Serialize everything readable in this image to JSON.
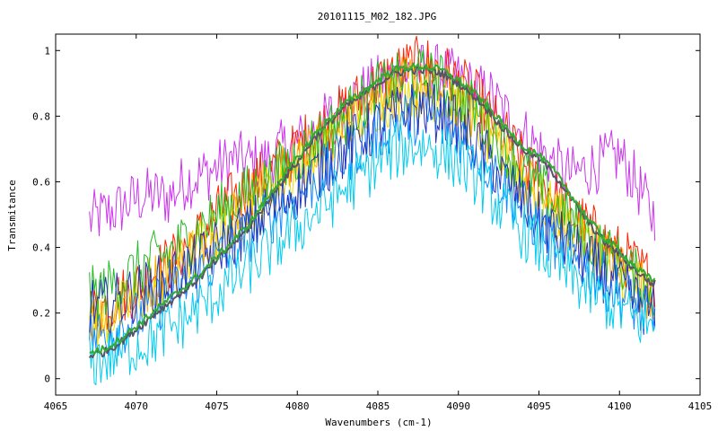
{
  "chart_data": {
    "type": "line",
    "title": "20101115_M02_182.JPG",
    "xlabel": "Wavenumbers (cm-1)",
    "ylabel": "Transmitance",
    "xlim": [
      4065,
      4105
    ],
    "ylim": [
      -0.05,
      1.05
    ],
    "xticks": [
      4065,
      4070,
      4075,
      4080,
      4085,
      4090,
      4095,
      4100,
      4105
    ],
    "xtick_labels": [
      "4065",
      "4070",
      "4075",
      "4080",
      "4085",
      "4090",
      "4095",
      "4100",
      "4105"
    ],
    "yticks": [
      0,
      0.2,
      0.4,
      0.6,
      0.8,
      1
    ],
    "ytick_labels": [
      "0",
      "0.2",
      "0.4",
      "0.6",
      "0.8",
      "1"
    ],
    "grid": false,
    "legend": "none",
    "x_range_data": [
      4067.1,
      4102.2
    ],
    "series": [
      {
        "color": "#cc33ee",
        "x": [
          4067,
          4068,
          4069,
          4070,
          4071,
          4072,
          4073,
          4074,
          4075,
          4076,
          4077,
          4078,
          4079,
          4080,
          4081,
          4082,
          4083,
          4084,
          4085,
          4086,
          4087,
          4088,
          4089,
          4090,
          4091,
          4092,
          4093,
          4094,
          4095,
          4096,
          4097,
          4098,
          4099,
          4100,
          4101,
          4102
        ],
        "y": [
          0.48,
          0.5,
          0.52,
          0.55,
          0.56,
          0.55,
          0.6,
          0.62,
          0.64,
          0.67,
          0.66,
          0.66,
          0.7,
          0.72,
          0.75,
          0.8,
          0.84,
          0.87,
          0.9,
          0.92,
          0.93,
          0.94,
          0.93,
          0.91,
          0.88,
          0.86,
          0.8,
          0.75,
          0.7,
          0.65,
          0.62,
          0.64,
          0.66,
          0.68,
          0.6,
          0.5
        ]
      },
      {
        "color": "#ff2200",
        "x": [
          4067,
          4068,
          4069,
          4070,
          4071,
          4072,
          4073,
          4074,
          4075,
          4076,
          4077,
          4078,
          4079,
          4080,
          4081,
          4082,
          4083,
          4084,
          4085,
          4086,
          4087,
          4088,
          4089,
          4090,
          4091,
          4092,
          4093,
          4094,
          4095,
          4096,
          4097,
          4098,
          4099,
          4100,
          4101,
          4102
        ],
        "y": [
          0.2,
          0.22,
          0.25,
          0.28,
          0.32,
          0.35,
          0.4,
          0.44,
          0.5,
          0.55,
          0.58,
          0.62,
          0.66,
          0.7,
          0.75,
          0.78,
          0.82,
          0.86,
          0.9,
          0.93,
          0.95,
          0.96,
          0.94,
          0.9,
          0.86,
          0.8,
          0.73,
          0.66,
          0.6,
          0.56,
          0.5,
          0.46,
          0.42,
          0.38,
          0.34,
          0.3
        ]
      },
      {
        "color": "#ffaa00",
        "x": [
          4067,
          4068,
          4069,
          4070,
          4071,
          4072,
          4073,
          4074,
          4075,
          4076,
          4077,
          4078,
          4079,
          4080,
          4081,
          4082,
          4083,
          4084,
          4085,
          4086,
          4087,
          4088,
          4089,
          4090,
          4091,
          4092,
          4093,
          4094,
          4095,
          4096,
          4097,
          4098,
          4099,
          4100,
          4101,
          4102
        ],
        "y": [
          0.18,
          0.2,
          0.22,
          0.26,
          0.3,
          0.33,
          0.37,
          0.42,
          0.46,
          0.5,
          0.55,
          0.58,
          0.62,
          0.66,
          0.7,
          0.74,
          0.78,
          0.82,
          0.86,
          0.88,
          0.9,
          0.9,
          0.88,
          0.85,
          0.8,
          0.74,
          0.68,
          0.62,
          0.56,
          0.5,
          0.46,
          0.42,
          0.38,
          0.34,
          0.3,
          0.26
        ]
      },
      {
        "color": "#eedd00",
        "x": [
          4067,
          4068,
          4069,
          4070,
          4071,
          4072,
          4073,
          4074,
          4075,
          4076,
          4077,
          4078,
          4079,
          4080,
          4081,
          4082,
          4083,
          4084,
          4085,
          4086,
          4087,
          4088,
          4089,
          4090,
          4091,
          4092,
          4093,
          4094,
          4095,
          4096,
          4097,
          4098,
          4099,
          4100,
          4101,
          4102
        ],
        "y": [
          0.16,
          0.18,
          0.21,
          0.24,
          0.28,
          0.31,
          0.35,
          0.4,
          0.44,
          0.48,
          0.52,
          0.56,
          0.6,
          0.64,
          0.68,
          0.72,
          0.76,
          0.8,
          0.84,
          0.86,
          0.88,
          0.88,
          0.86,
          0.83,
          0.78,
          0.72,
          0.66,
          0.6,
          0.55,
          0.5,
          0.45,
          0.41,
          0.37,
          0.33,
          0.29,
          0.25
        ]
      },
      {
        "color": "#22bb22",
        "x": [
          4067,
          4068,
          4069,
          4070,
          4071,
          4072,
          4073,
          4074,
          4075,
          4076,
          4077,
          4078,
          4079,
          4080,
          4081,
          4082,
          4083,
          4084,
          4085,
          4086,
          4087,
          4088,
          4089,
          4090,
          4091,
          4092,
          4093,
          4094,
          4095,
          4096,
          4097,
          4098,
          4099,
          4100,
          4101,
          4102
        ],
        "y": [
          0.25,
          0.27,
          0.3,
          0.33,
          0.36,
          0.38,
          0.42,
          0.46,
          0.5,
          0.54,
          0.57,
          0.6,
          0.64,
          0.68,
          0.72,
          0.76,
          0.8,
          0.84,
          0.88,
          0.9,
          0.92,
          0.92,
          0.9,
          0.86,
          0.82,
          0.76,
          0.7,
          0.64,
          0.58,
          0.53,
          0.48,
          0.43,
          0.39,
          0.35,
          0.31,
          0.27
        ]
      },
      {
        "color": "#1188ff",
        "x": [
          4067,
          4068,
          4069,
          4070,
          4071,
          4072,
          4073,
          4074,
          4075,
          4076,
          4077,
          4078,
          4079,
          4080,
          4081,
          4082,
          4083,
          4084,
          4085,
          4086,
          4087,
          4088,
          4089,
          4090,
          4091,
          4092,
          4093,
          4094,
          4095,
          4096,
          4097,
          4098,
          4099,
          4100,
          4101,
          4102
        ],
        "y": [
          0.12,
          0.14,
          0.16,
          0.18,
          0.22,
          0.25,
          0.28,
          0.32,
          0.36,
          0.4,
          0.44,
          0.48,
          0.52,
          0.56,
          0.6,
          0.64,
          0.68,
          0.72,
          0.75,
          0.78,
          0.8,
          0.8,
          0.78,
          0.75,
          0.7,
          0.64,
          0.58,
          0.52,
          0.46,
          0.42,
          0.38,
          0.34,
          0.3,
          0.26,
          0.22,
          0.18
        ]
      },
      {
        "color": "#2233bb",
        "x": [
          4067,
          4068,
          4069,
          4070,
          4071,
          4072,
          4073,
          4074,
          4075,
          4076,
          4077,
          4078,
          4079,
          4080,
          4081,
          4082,
          4083,
          4084,
          4085,
          4086,
          4087,
          4088,
          4089,
          4090,
          4091,
          4092,
          4093,
          4094,
          4095,
          4096,
          4097,
          4098,
          4099,
          4100,
          4101,
          4102
        ],
        "y": [
          0.22,
          0.22,
          0.24,
          0.26,
          0.28,
          0.3,
          0.33,
          0.36,
          0.4,
          0.43,
          0.46,
          0.5,
          0.54,
          0.58,
          0.62,
          0.66,
          0.7,
          0.74,
          0.77,
          0.8,
          0.82,
          0.82,
          0.8,
          0.77,
          0.72,
          0.66,
          0.6,
          0.54,
          0.48,
          0.44,
          0.4,
          0.36,
          0.32,
          0.28,
          0.24,
          0.2
        ]
      },
      {
        "color": "#00ccee",
        "x": [
          4067,
          4068,
          4069,
          4070,
          4071,
          4072,
          4073,
          4074,
          4075,
          4076,
          4077,
          4078,
          4079,
          4080,
          4081,
          4082,
          4083,
          4084,
          4085,
          4086,
          4087,
          4088,
          4089,
          4090,
          4091,
          4092,
          4093,
          4094,
          4095,
          4096,
          4097,
          4098,
          4099,
          4100,
          4101,
          4102
        ],
        "y": [
          0.05,
          0.06,
          0.08,
          0.1,
          0.12,
          0.15,
          0.18,
          0.22,
          0.26,
          0.3,
          0.34,
          0.38,
          0.42,
          0.46,
          0.5,
          0.54,
          0.58,
          0.62,
          0.66,
          0.69,
          0.71,
          0.71,
          0.69,
          0.66,
          0.62,
          0.56,
          0.5,
          0.45,
          0.4,
          0.35,
          0.31,
          0.27,
          0.24,
          0.21,
          0.18,
          0.16
        ]
      },
      {
        "color": "#555566",
        "x": [
          4067,
          4068,
          4069,
          4070,
          4071,
          4072,
          4073,
          4074,
          4075,
          4076,
          4077,
          4078,
          4079,
          4080,
          4081,
          4082,
          4083,
          4084,
          4085,
          4086,
          4087,
          4088,
          4089,
          4090,
          4091,
          4092,
          4093,
          4094,
          4095,
          4096,
          4097,
          4098,
          4099,
          4100,
          4101,
          4102
        ],
        "y": [
          0.07,
          0.08,
          0.11,
          0.15,
          0.19,
          0.23,
          0.27,
          0.31,
          0.36,
          0.41,
          0.46,
          0.53,
          0.6,
          0.66,
          0.73,
          0.78,
          0.83,
          0.86,
          0.9,
          0.93,
          0.94,
          0.94,
          0.93,
          0.9,
          0.86,
          0.81,
          0.75,
          0.7,
          0.67,
          0.62,
          0.55,
          0.48,
          0.42,
          0.38,
          0.33,
          0.29
        ]
      },
      {
        "color": "#33aa33",
        "x": [
          4067,
          4068,
          4069,
          4070,
          4071,
          4072,
          4073,
          4074,
          4075,
          4076,
          4077,
          4078,
          4079,
          4080,
          4081,
          4082,
          4083,
          4084,
          4085,
          4086,
          4087,
          4088,
          4089,
          4090,
          4091,
          4092,
          4093,
          4094,
          4095,
          4096,
          4097,
          4098,
          4099,
          4100,
          4101,
          4102
        ],
        "y": [
          0.08,
          0.09,
          0.12,
          0.16,
          0.2,
          0.24,
          0.28,
          0.32,
          0.37,
          0.42,
          0.47,
          0.54,
          0.61,
          0.67,
          0.74,
          0.79,
          0.84,
          0.87,
          0.91,
          0.94,
          0.95,
          0.95,
          0.94,
          0.91,
          0.87,
          0.82,
          0.76,
          0.71,
          0.68,
          0.63,
          0.56,
          0.49,
          0.43,
          0.39,
          0.34,
          0.3
        ]
      }
    ]
  }
}
